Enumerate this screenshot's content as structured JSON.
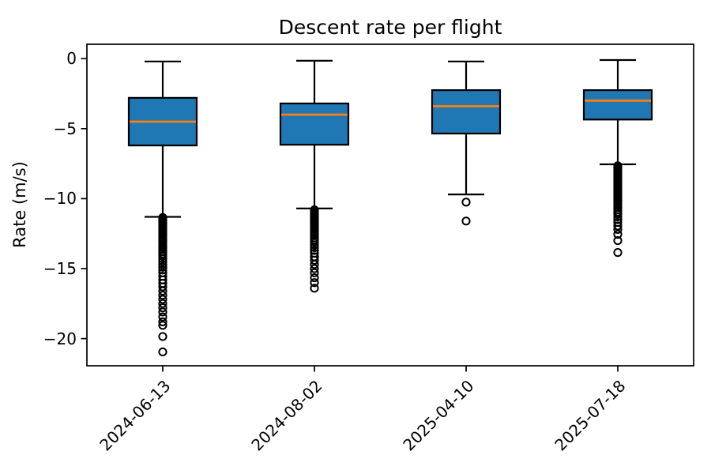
{
  "chart_data": {
    "type": "boxplot",
    "title": "Descent rate per flight",
    "ylabel": "Rate (m/s)",
    "xlabel": "",
    "grid": false,
    "legend": null,
    "ylim": [
      -21.94,
      1.03
    ],
    "yticks": [
      0,
      -5,
      -10,
      -15,
      -20
    ],
    "ytick_labels": [
      "0",
      "−5",
      "−10",
      "−15",
      "−20"
    ],
    "x_tick_rotation": 45,
    "categories": [
      "2024-06-13",
      "2024-08-02",
      "2025-04-10",
      "2025-07-18"
    ],
    "series": [
      {
        "label": "2024-06-13",
        "whisker_high": -0.2,
        "q3": -2.8,
        "median": -4.5,
        "q1": -6.2,
        "whisker_low": -11.3,
        "outliers": [
          -11.35,
          -11.45,
          -11.55,
          -11.65,
          -11.75,
          -11.85,
          -11.95,
          -12.05,
          -12.15,
          -12.25,
          -12.35,
          -12.45,
          -12.55,
          -12.65,
          -12.8,
          -12.9,
          -13.0,
          -13.1,
          -13.25,
          -13.4,
          -13.5,
          -13.65,
          -13.8,
          -13.95,
          -14.1,
          -14.3,
          -14.5,
          -14.7,
          -14.9,
          -15.1,
          -15.3,
          -15.55,
          -15.8,
          -16.05,
          -16.3,
          -16.6,
          -16.9,
          -17.2,
          -17.5,
          -17.8,
          -18.1,
          -18.45,
          -18.8,
          -19.05,
          -19.85,
          -20.95
        ]
      },
      {
        "label": "2024-08-02",
        "whisker_high": -0.15,
        "q3": -3.2,
        "median": -4.0,
        "q1": -6.15,
        "whisker_low": -10.7,
        "outliers": [
          -10.8,
          -10.9,
          -11.0,
          -11.1,
          -11.2,
          -11.3,
          -11.4,
          -11.5,
          -11.6,
          -11.7,
          -11.8,
          -11.9,
          -12.0,
          -12.1,
          -12.2,
          -12.35,
          -12.5,
          -12.65,
          -12.8,
          -12.95,
          -13.1,
          -13.3,
          -13.5,
          -13.7,
          -13.9,
          -14.15,
          -14.4,
          -14.7,
          -15.0,
          -15.3,
          -15.65,
          -16.0,
          -16.4
        ]
      },
      {
        "label": "2025-04-10",
        "whisker_high": -0.2,
        "q3": -2.25,
        "median": -3.4,
        "q1": -5.35,
        "whisker_low": -9.7,
        "outliers": [
          -10.25,
          -11.6
        ]
      },
      {
        "label": "2025-07-18",
        "whisker_high": -0.1,
        "q3": -2.25,
        "median": -3.0,
        "q1": -4.35,
        "whisker_low": -7.55,
        "outliers": [
          -7.65,
          -7.73,
          -7.81,
          -7.9,
          -8.0,
          -8.1,
          -8.2,
          -8.3,
          -8.4,
          -8.5,
          -8.6,
          -8.7,
          -8.8,
          -8.9,
          -9.0,
          -9.1,
          -9.2,
          -9.3,
          -9.4,
          -9.5,
          -9.6,
          -9.7,
          -9.8,
          -9.9,
          -10.0,
          -10.1,
          -10.2,
          -10.35,
          -10.5,
          -10.65,
          -10.8,
          -10.95,
          -11.1,
          -11.3,
          -11.5,
          -11.7,
          -11.95,
          -12.2,
          -12.55,
          -13.0,
          -13.85
        ]
      }
    ],
    "colors": {
      "box_fill": "#1f77b4",
      "median": "#ff7f0e",
      "line": "#000000",
      "background": "#ffffff"
    }
  }
}
